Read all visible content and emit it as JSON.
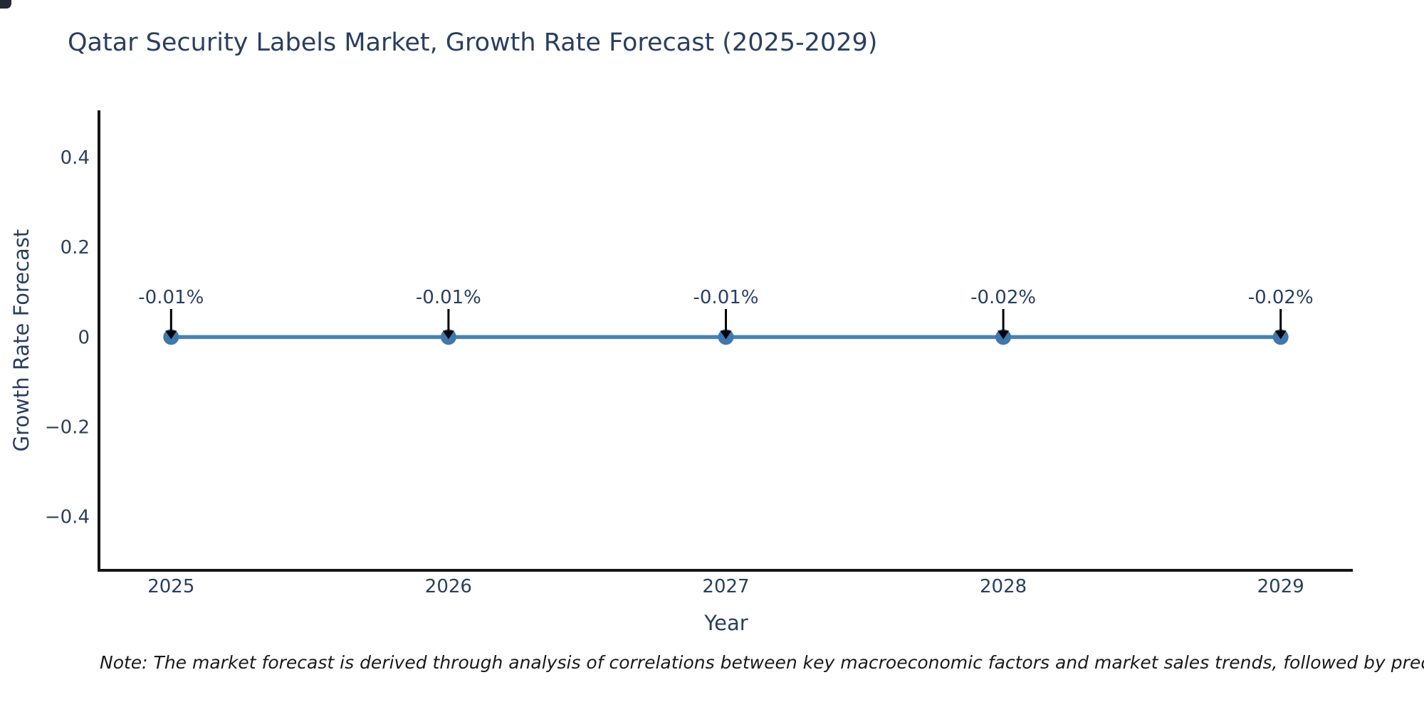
{
  "page": {
    "background": "#ffffff"
  },
  "title": {
    "text": "Qatar Security Labels Market, Growth Rate Forecast (2025-2029)"
  },
  "note": {
    "text": "Note: The market forecast is derived through analysis of correlations between key macroeconomic factors and market sales trends, followed by predictive modeling to project future sa"
  },
  "chart_data": {
    "type": "line",
    "title": "Qatar Security Labels Market, Growth Rate Forecast (2025-2029)",
    "xlabel": "Year",
    "ylabel": "Growth Rate Forecast",
    "x": [
      2025,
      2026,
      2027,
      2028,
      2029
    ],
    "xtick_labels": [
      "2025",
      "2026",
      "2027",
      "2028",
      "2029"
    ],
    "series": [
      {
        "name": "Growth Rate Forecast",
        "values": [
          -0.0001,
          -0.0001,
          -0.0001,
          -0.0002,
          -0.0002
        ]
      }
    ],
    "point_labels": [
      "-0.01%",
      "-0.01%",
      "-0.01%",
      "-0.02%",
      "-0.02%"
    ],
    "ytick_labels": [
      "0.4",
      "0.2",
      "0",
      "−0.2",
      "−0.4"
    ],
    "ytick_values": [
      0.4,
      0.2,
      0,
      -0.2,
      -0.4
    ],
    "ylim": [
      -0.52,
      0.505
    ],
    "xlim": [
      2024.74,
      2029.26
    ],
    "grid": false,
    "legend": false,
    "colors": {
      "line": "#4682b4",
      "marker": "#3d78ae",
      "axis": "#151515",
      "labels": "#2a3f5f",
      "annotation_text": "#2a3f5f",
      "annotation_arrow": "#000000"
    }
  }
}
